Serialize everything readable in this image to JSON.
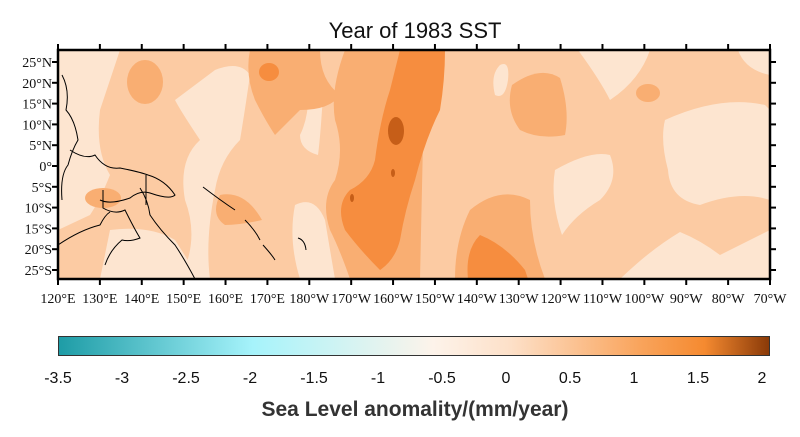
{
  "title": "Year of 1983 SST",
  "map": {
    "lon_labels": [
      "120°E",
      "130°E",
      "140°E",
      "150°E",
      "160°E",
      "170°E",
      "180°W",
      "170°W",
      "160°W",
      "150°W",
      "140°W",
      "130°W",
      "120°W",
      "110°W",
      "100°W",
      "90°W",
      "80°W",
      "70°W"
    ],
    "lat_labels": [
      "25°N",
      "20°N",
      "15°N",
      "10°N",
      "5°N",
      "0°",
      "5°S",
      "10°S",
      "15°S",
      "20°S",
      "25°S"
    ],
    "fill_colors": {
      "lightest": "#fde5d0",
      "base": "#fccba3",
      "medium": "#f9ae72",
      "dark": "#f68d3f",
      "darkest": "#c65e18"
    }
  },
  "colorbar": {
    "ticks": [
      "-3.5",
      "-3",
      "-2.5",
      "-2",
      "-1.5",
      "-1",
      "-0.5",
      "0",
      "0.5",
      "1",
      "1.5",
      "2"
    ],
    "range": [
      -3.5,
      2
    ],
    "colors": [
      "#1e9ca6",
      "#a6f3fb",
      "#fdf3ea",
      "#fde0c8",
      "#f9a45c",
      "#f58a30",
      "#8a3a08"
    ],
    "label": "Sea Level anomality/(mm/year)"
  }
}
